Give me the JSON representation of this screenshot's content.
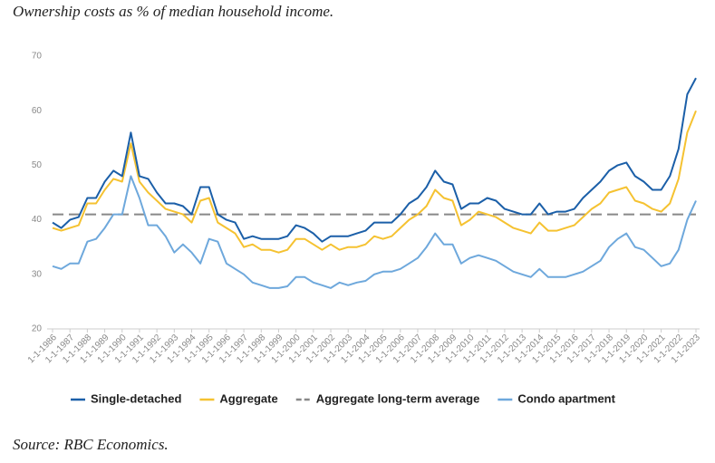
{
  "chart_data": {
    "type": "line",
    "title": "Ownership costs as % of median household income.",
    "source": "Source: RBC Economics.",
    "categories": [
      "1-1-1986",
      null,
      "1-1-1987",
      null,
      "1-1-1988",
      null,
      "1-1-1989",
      null,
      "1-1-1990",
      null,
      "1-1-1991",
      null,
      "1-1-1992",
      null,
      "1-1-1993",
      null,
      "1-1-1994",
      null,
      "1-1-1995",
      null,
      "1-1-1996",
      null,
      "1-1-1997",
      null,
      "1-1-1998",
      null,
      "1-1-1999",
      null,
      "1-1-2000",
      null,
      "1-1-2001",
      null,
      "1-1-2002",
      null,
      "1-1-2003",
      null,
      "1-1-2004",
      null,
      "1-1-2005",
      null,
      "1-1-2006",
      null,
      "1-1-2007",
      null,
      "1-1-2008",
      null,
      "1-1-2009",
      null,
      "1-1-2010",
      null,
      "1-1-2011",
      null,
      "1-1-2012",
      null,
      "1-1-2013",
      null,
      "1-1-2014",
      null,
      "1-1-2015",
      null,
      "1-1-2016",
      null,
      "1-1-2017",
      null,
      "1-1-2018",
      null,
      "1-1-2019",
      null,
      "1-1-2020",
      null,
      "1-1-2021",
      null,
      "1-1-2022",
      null,
      "1-1-2023"
    ],
    "series": [
      {
        "name": "Single-detached",
        "color": "#1b5fa8",
        "values": [
          39.5,
          38.5,
          40,
          40.5,
          44,
          44,
          47,
          49,
          48,
          56,
          48,
          47.5,
          45,
          43,
          43,
          42.5,
          41,
          46,
          46,
          41,
          40,
          39.5,
          36.5,
          37,
          36.5,
          36.5,
          36.5,
          37,
          39,
          38.5,
          37.5,
          36,
          37,
          37,
          37,
          37.5,
          38,
          39.5,
          39.5,
          39.5,
          41,
          43,
          44,
          46,
          49,
          47,
          46.5,
          42,
          43,
          43,
          44,
          43.5,
          42,
          41.5,
          41,
          41,
          43,
          41,
          41.5,
          41.5,
          42,
          44,
          45.5,
          47,
          49,
          50,
          50.5,
          48,
          47,
          45.5,
          45.5,
          48,
          53,
          63,
          66
        ]
      },
      {
        "name": "Aggregate",
        "color": "#f5c231",
        "values": [
          38.5,
          38,
          38.5,
          39,
          43,
          43,
          45.5,
          47.5,
          47,
          54,
          47,
          45,
          43.5,
          42,
          41.5,
          41,
          39.5,
          43.5,
          44,
          39.5,
          38.5,
          37.5,
          35,
          35.5,
          34.5,
          34.5,
          34,
          34.5,
          36.5,
          36.5,
          35.5,
          34.5,
          35.5,
          34.5,
          35,
          35,
          35.5,
          37,
          36.5,
          37,
          38.5,
          40,
          41,
          42.5,
          45.5,
          44,
          43.5,
          39,
          40,
          41.5,
          41,
          40.5,
          39.5,
          38.5,
          38,
          37.5,
          39.5,
          38,
          38,
          38.5,
          39,
          40.5,
          42,
          43,
          45,
          45.5,
          46,
          43.5,
          43,
          42,
          41.5,
          43,
          47.5,
          56,
          60
        ]
      },
      {
        "name": "Condo apartment",
        "color": "#6ea8dc",
        "values": [
          31.5,
          31,
          32,
          32,
          36,
          36.5,
          38.5,
          41,
          41,
          48,
          44,
          39,
          39,
          37,
          34,
          35.5,
          34,
          32,
          36.5,
          36,
          32,
          31,
          30,
          28.5,
          28,
          27.5,
          27.5,
          27.8,
          29.5,
          29.5,
          28.5,
          28,
          27.5,
          28.5,
          28,
          28.5,
          28.8,
          30,
          30.5,
          30.5,
          31,
          32,
          33,
          35,
          37.5,
          35.5,
          35.5,
          32,
          33,
          33.5,
          33,
          32.5,
          31.5,
          30.5,
          30,
          29.5,
          31,
          29.5,
          29.5,
          29.5,
          30,
          30.5,
          31.5,
          32.5,
          35,
          36.5,
          37.5,
          35,
          34.5,
          33,
          31.5,
          32,
          34.5,
          40,
          43.5
        ]
      }
    ],
    "average": {
      "name": "Aggregate long-term average",
      "color": "#888888",
      "value": 41
    },
    "ylim": [
      20,
      70
    ],
    "yticks": [
      20,
      30,
      40,
      50,
      60,
      70
    ],
    "grid": false
  }
}
